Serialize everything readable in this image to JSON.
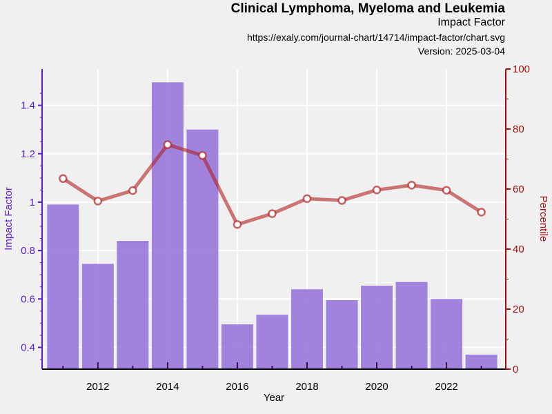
{
  "header": {
    "title": "Clinical Lymphoma, Myeloma and Leukemia",
    "subtitle": "Impact Factor",
    "url": "https://exaly.com/journal-chart/14714/impact-factor/chart.svg",
    "version": "Version: 2025-03-04"
  },
  "colors": {
    "bar": "#9370DB",
    "line": "#B22222",
    "left_axis": "#5a1fd1",
    "right_axis": "#a01010",
    "background": "#f0f0f0",
    "grid": "#ffffff"
  },
  "chart_data": {
    "type": "bar",
    "title": "Clinical Lymphoma, Myeloma and Leukemia",
    "subtitle": "Impact Factor",
    "xlabel": "Year",
    "ylabel": "Impact Factor",
    "y2label": "Percentile",
    "x": [
      2011,
      2012,
      2013,
      2014,
      2015,
      2016,
      2017,
      2018,
      2019,
      2020,
      2021,
      2022,
      2023
    ],
    "xlim": [
      2010.4,
      2023.7
    ],
    "xticks": [
      2012,
      2014,
      2016,
      2018,
      2020,
      2022
    ],
    "ylim": [
      0.31,
      1.55
    ],
    "yticks": [
      0.4,
      0.6,
      0.8,
      1,
      1.2,
      1.4
    ],
    "y2lim": [
      0,
      100
    ],
    "y2ticks": [
      0,
      20,
      40,
      60,
      80,
      100
    ],
    "grid": true,
    "series": [
      {
        "name": "Impact Factor",
        "type": "bar",
        "axis": "left",
        "values": [
          0.99,
          0.745,
          0.84,
          1.495,
          1.3,
          0.495,
          0.535,
          0.64,
          0.595,
          0.655,
          0.67,
          0.6,
          0.37
        ]
      },
      {
        "name": "Percentile",
        "type": "line",
        "axis": "right",
        "values": [
          63.5,
          56.0,
          59.5,
          74.8,
          71.2,
          48.2,
          51.8,
          56.8,
          56.2,
          59.7,
          61.3,
          59.6,
          52.3
        ]
      }
    ]
  }
}
